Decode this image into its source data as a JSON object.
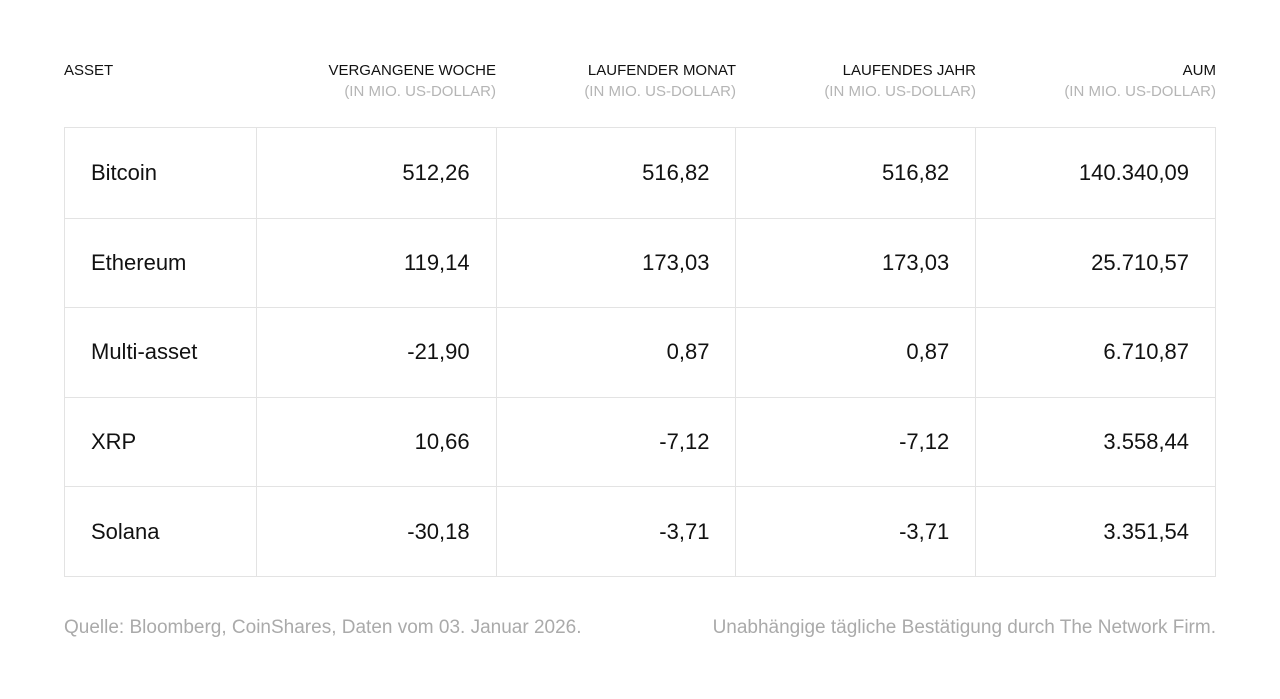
{
  "table": {
    "columns": [
      {
        "title": "ASSET"
      },
      {
        "title": "VERGANGENE WOCHE",
        "subtitle": "(IN MIO. US-DOLLAR)"
      },
      {
        "title": "LAUFENDER MONAT",
        "subtitle": "(IN MIO. US-DOLLAR)"
      },
      {
        "title": "LAUFENDES JAHR",
        "subtitle": "(IN MIO. US-DOLLAR)"
      },
      {
        "title": "AUM",
        "subtitle": "(IN MIO. US-DOLLAR)"
      }
    ],
    "rows": [
      [
        "Bitcoin",
        "512,26",
        "516,82",
        "516,82",
        "140.340,09"
      ],
      [
        "Ethereum",
        "119,14",
        "173,03",
        "173,03",
        "25.710,57"
      ],
      [
        "Multi-asset",
        "-21,90",
        "0,87",
        "0,87",
        "6.710,87"
      ],
      [
        "XRP",
        "10,66",
        "-7,12",
        "-7,12",
        "3.558,44"
      ],
      [
        "Solana",
        "-30,18",
        "-3,71",
        "-3,71",
        "3.351,54"
      ]
    ]
  },
  "footer": {
    "source": "Quelle: Bloomberg, CoinShares, Daten vom 03. Januar 2026.",
    "note": "Unabhängige tägliche Bestätigung durch The Network Firm."
  }
}
